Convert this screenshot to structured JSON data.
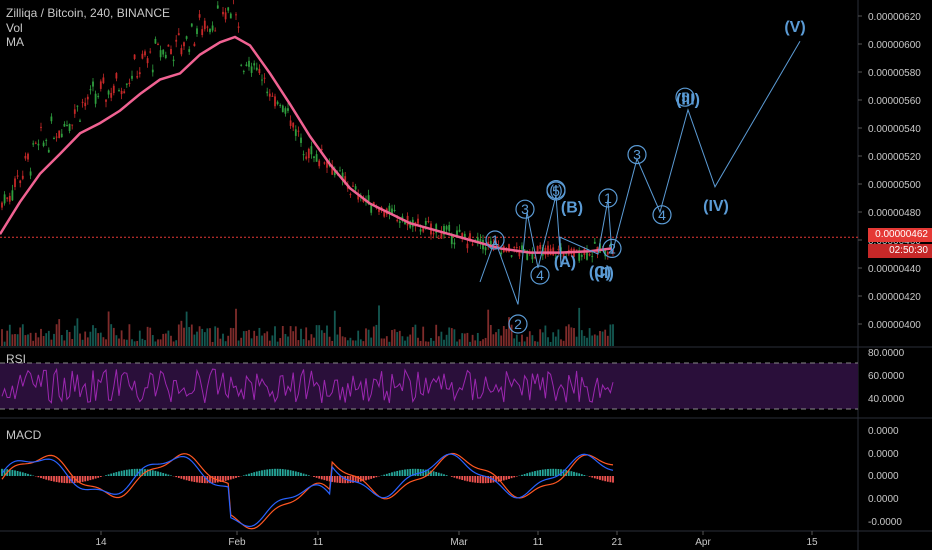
{
  "header": {
    "title": "Zilliqa / Bitcoin, 240, BINANCE",
    "vol_label": "Vol",
    "ma_label": "MA"
  },
  "price_tag": {
    "current": "0.00000462",
    "countdown": "02:50:30"
  },
  "colors": {
    "up": "#26a69a",
    "down": "#ef5350",
    "ma": "#f06292",
    "wave": "#5b9bd5",
    "rsi": "#9c27b0",
    "macd": "#2962ff",
    "signal": "#ff5722",
    "current": "#e53935"
  },
  "rsi": {
    "label": "RSI",
    "ticks": [
      "80.0000",
      "60.0000",
      "40.0000"
    ]
  },
  "macd": {
    "label": "MACD",
    "ticks": [
      "0.0000",
      "0.0000",
      "0.0000",
      "0.0000",
      "-0.0000"
    ]
  },
  "chart_data": {
    "type": "candlestick",
    "title": "Zilliqa / Bitcoin, 240, BINANCE",
    "y_axis_ticks": [
      "0.00000620",
      "0.00000600",
      "0.00000580",
      "0.00000560",
      "0.00000540",
      "0.00000520",
      "0.00000500",
      "0.00000480",
      "0.00000460",
      "0.00000440",
      "0.00000420",
      "0.00000400"
    ],
    "x_axis_ticks": [
      "14",
      "Feb",
      "11",
      "Mar",
      "11",
      "21",
      "Apr",
      "15"
    ],
    "ylim": [
      3.92e-06,
      6.25e-06
    ],
    "current_price": 4.62e-06,
    "ma_series": [
      [
        0,
        4.641e-06
      ],
      [
        20,
        4.872e-06
      ],
      [
        40,
        5.073e-06
      ],
      [
        60,
        5.215e-06
      ],
      [
        80,
        5.362e-06
      ],
      [
        100,
        5.435e-06
      ],
      [
        120,
        5.524e-06
      ],
      [
        140,
        5.643e-06
      ],
      [
        160,
        5.746e-06
      ],
      [
        180,
        5.79e-06
      ],
      [
        200,
        5.924e-06
      ],
      [
        220,
        6.012e-06
      ],
      [
        235,
        6.05e-06
      ],
      [
        250,
        5.99e-06
      ],
      [
        270,
        5.79e-06
      ],
      [
        290,
        5.57e-06
      ],
      [
        310,
        5.34e-06
      ],
      [
        330,
        5.14e-06
      ],
      [
        350,
        4.97e-06
      ],
      [
        370,
        4.86e-06
      ],
      [
        390,
        4.79e-06
      ],
      [
        410,
        4.72e-06
      ],
      [
        440,
        4.66e-06
      ],
      [
        470,
        4.6e-06
      ],
      [
        500,
        4.54e-06
      ],
      [
        530,
        4.51e-06
      ],
      [
        560,
        4.51e-06
      ],
      [
        590,
        4.52e-06
      ],
      [
        612,
        4.54e-06
      ]
    ],
    "elliott_waves": [
      {
        "wave": "(I)-(II)",
        "points": [
          [
            480,
            4.3e-06
          ],
          [
            495,
            4.6e-06
          ],
          [
            518,
            4.14e-06
          ],
          [
            527,
            4.8e-06
          ],
          [
            538,
            4.4e-06
          ],
          [
            556,
            4.92e-06
          ],
          [
            561,
            4.42e-06
          ],
          [
            560,
            4.62e-06
          ],
          [
            598,
            4.5e-06
          ],
          [
            608,
            4.89e-06
          ],
          [
            612,
            4.5e-06
          ]
        ]
      },
      {
        "wave": "(III)-(V)",
        "points": [
          [
            612,
            4.5e-06
          ],
          [
            637,
            5.18e-06
          ],
          [
            660,
            4.8e-06
          ],
          [
            688,
            5.53e-06
          ],
          [
            715,
            4.98e-06
          ],
          [
            800,
            6.02e-06
          ]
        ]
      }
    ],
    "wave_labels": [
      {
        "text": "1",
        "x": 495,
        "y": 4.6e-06,
        "style": "circle"
      },
      {
        "text": "2",
        "x": 518,
        "y": 4e-06,
        "style": "circle"
      },
      {
        "text": "3",
        "x": 525,
        "y": 4.82e-06,
        "style": "circle"
      },
      {
        "text": "4",
        "x": 540,
        "y": 4.35e-06,
        "style": "circle"
      },
      {
        "text": "(I)",
        "x": 556,
        "y": 4.96e-06,
        "style": "circle"
      },
      {
        "text": "5",
        "x": 556,
        "y": 4.95e-06,
        "style": "circle"
      },
      {
        "text": "(B)",
        "x": 572,
        "y": 4.84e-06,
        "style": "text"
      },
      {
        "text": "(A)",
        "x": 565,
        "y": 4.45e-06,
        "style": "text"
      },
      {
        "text": "1",
        "x": 608,
        "y": 4.9e-06,
        "style": "circle"
      },
      {
        "text": "2",
        "x": 612,
        "y": 4.54e-06,
        "style": "circle"
      },
      {
        "text": "(C)",
        "x": 600,
        "y": 4.38e-06,
        "style": "text"
      },
      {
        "text": "(II)",
        "x": 604,
        "y": 4.37e-06,
        "style": "text"
      },
      {
        "text": "3",
        "x": 637,
        "y": 5.21e-06,
        "style": "circle"
      },
      {
        "text": "4",
        "x": 662,
        "y": 4.78e-06,
        "style": "circle"
      },
      {
        "text": "(III)",
        "x": 688,
        "y": 5.61e-06,
        "style": "text"
      },
      {
        "text": "5",
        "x": 685,
        "y": 5.62e-06,
        "style": "circle"
      },
      {
        "text": "(IV)",
        "x": 716,
        "y": 4.85e-06,
        "style": "text"
      },
      {
        "text": "(V)",
        "x": 795,
        "y": 6.13e-06,
        "style": "text"
      }
    ]
  }
}
